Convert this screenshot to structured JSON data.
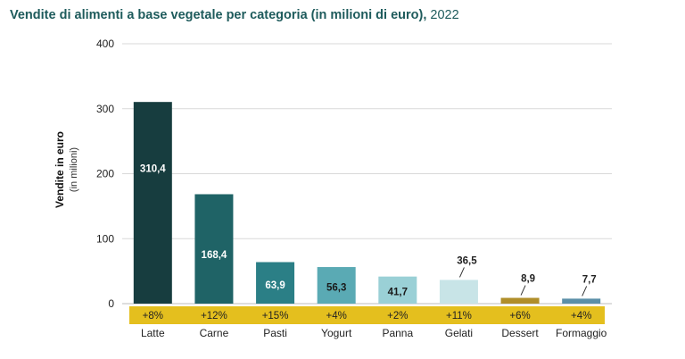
{
  "chart_data": {
    "type": "bar",
    "title": "Vendite di alimenti a base vegetale per categoria (in milioni di euro),",
    "title_year": "2022",
    "ylabel": "Vendite in euro",
    "ylabel_sub": "(in milioni)",
    "ylim": [
      0,
      400
    ],
    "yticks": [
      "0",
      "100",
      "200",
      "300",
      "400"
    ],
    "categories": [
      "Latte",
      "Carne",
      "Pasti",
      "Yogurt",
      "Panna",
      "Gelati",
      "Dessert",
      "Formaggio"
    ],
    "values": [
      310.4,
      168.4,
      63.9,
      56.3,
      41.7,
      36.5,
      8.9,
      7.7
    ],
    "value_labels": [
      "310,4",
      "168,4",
      "63,9",
      "56,3",
      "41,7",
      "36,5",
      "8,9",
      "7,7"
    ],
    "growth_labels": [
      "+8%",
      "+12%",
      "+15%",
      "+4%",
      "+2%",
      "+11%",
      "+6%",
      "+4%"
    ],
    "bar_colors": [
      "#173d3f",
      "#1f6366",
      "#2b7f86",
      "#5aaab4",
      "#9ad0d6",
      "#c8e4e7",
      "#b08e2a",
      "#5b8fa8"
    ],
    "growth_band_color": "#e4bf1e",
    "grid": true,
    "legend": "none"
  }
}
